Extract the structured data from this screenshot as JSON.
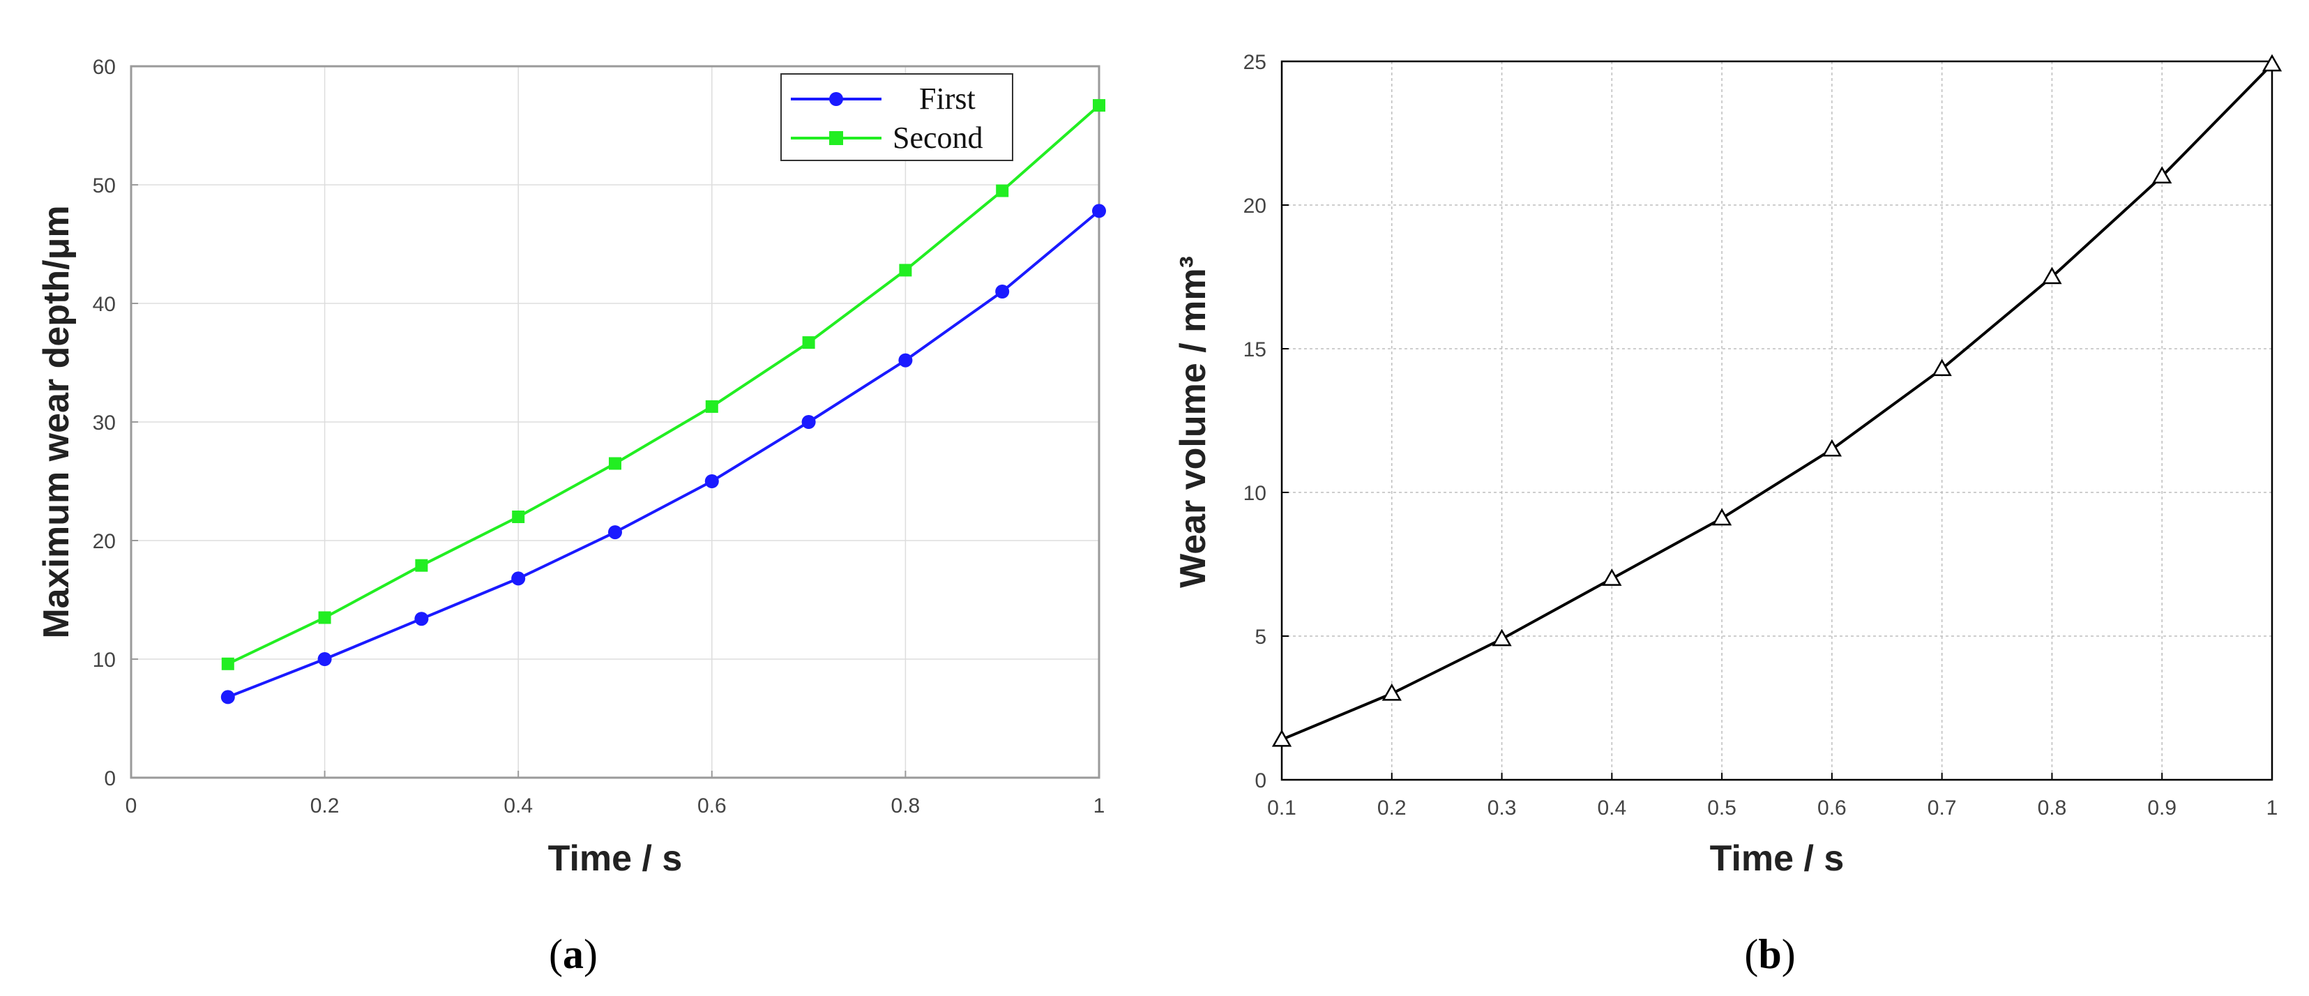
{
  "chart_data": [
    {
      "panel": "(a)",
      "caption_letter": "a",
      "type": "line",
      "xlabel": "Time / s",
      "ylabel": "Maximum wear depth/μm",
      "xlim": [
        0,
        1
      ],
      "ylim": [
        0,
        60
      ],
      "x_ticks": [
        "0",
        "0.2",
        "0.4",
        "0.6",
        "0.8",
        "1"
      ],
      "y_ticks": [
        "0",
        "10",
        "20",
        "30",
        "40",
        "50",
        "60"
      ],
      "grid": true,
      "legend": "top-right",
      "x": [
        0.1,
        0.2,
        0.3,
        0.4,
        0.5,
        0.6,
        0.7,
        0.8,
        0.9,
        1.0
      ],
      "series": [
        {
          "name": "First",
          "color": "#1a1aff",
          "marker": "circle",
          "values": [
            6.8,
            10.0,
            13.4,
            16.8,
            20.7,
            25.0,
            30.0,
            35.2,
            41.0,
            47.8
          ]
        },
        {
          "name": "Second",
          "color": "#22ee22",
          "marker": "square",
          "values": [
            9.6,
            13.5,
            17.9,
            22.0,
            26.5,
            31.3,
            36.7,
            42.8,
            49.5,
            56.7
          ]
        }
      ]
    },
    {
      "panel": "(b)",
      "caption_letter": "b",
      "type": "line",
      "xlabel": "Time / s",
      "ylabel": "Wear volume / mm³",
      "xlim": [
        0.1,
        1
      ],
      "ylim": [
        0,
        25
      ],
      "x_ticks": [
        "0.1",
        "0.2",
        "0.3",
        "0.4",
        "0.5",
        "0.6",
        "0.7",
        "0.8",
        "0.9",
        "1"
      ],
      "y_ticks": [
        "0",
        "5",
        "10",
        "15",
        "20",
        "25"
      ],
      "grid": true,
      "x": [
        0.1,
        0.2,
        0.3,
        0.4,
        0.5,
        0.6,
        0.7,
        0.8,
        0.9,
        1.0
      ],
      "series": [
        {
          "color": "#000000",
          "marker": "triangle",
          "values": [
            1.4,
            3.0,
            4.9,
            7.0,
            9.1,
            11.5,
            14.3,
            17.5,
            21.0,
            24.9
          ]
        }
      ]
    }
  ]
}
